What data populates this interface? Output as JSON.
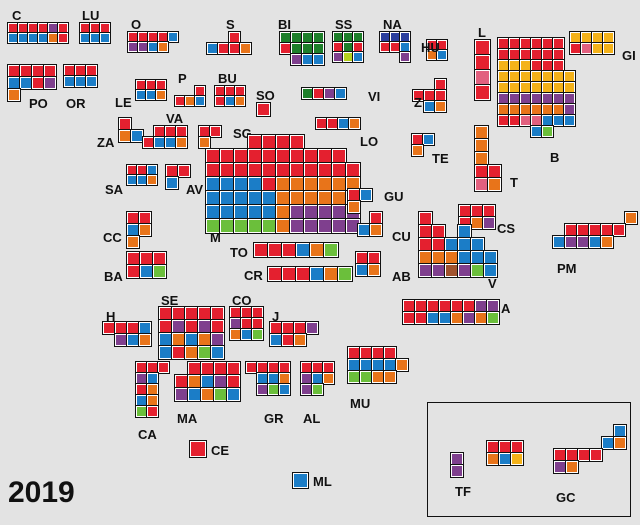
{
  "title": "2019",
  "colors": {
    "red": "#e4202f",
    "blue": "#1b7dc7",
    "orange": "#e8741a",
    "purple": "#7f3f8e",
    "green": "#6bbf3b",
    "dkgreen": "#1d7f2a",
    "yellow": "#f4b219",
    "pink": "#e2607f",
    "lime": "#b6d11e",
    "brown": "#a0522d",
    "navy": "#2a3e9e"
  },
  "provinces": [
    {
      "id": "C",
      "label": "C",
      "cols": 6,
      "rows": [
        [
          "red",
          "red",
          "red",
          "red",
          "purple",
          "red"
        ],
        [
          "blue",
          "blue",
          "blue",
          "blue",
          "orange",
          "red"
        ]
      ]
    },
    {
      "id": "LU",
      "label": "LU",
      "cols": 3,
      "rows": [
        [
          "red",
          "red",
          "red"
        ],
        [
          "blue",
          "blue",
          "blue"
        ]
      ]
    },
    {
      "id": "O",
      "label": "O",
      "cols": 5,
      "rows": [
        [
          "red",
          "red",
          "red",
          "red",
          "blue"
        ],
        [
          "purple",
          "purple",
          "blue",
          "orange",
          ""
        ]
      ]
    },
    {
      "id": "S",
      "label": "S",
      "cols": 4,
      "rows": [
        [
          "",
          "",
          "red",
          ""
        ],
        [
          "blue",
          "red",
          "red",
          "orange"
        ]
      ]
    },
    {
      "id": "BI",
      "label": "BI",
      "cols": 4,
      "rows": [
        [
          "dkgreen",
          "dkgreen",
          "dkgreen",
          "dkgreen"
        ],
        [
          "red",
          "dkgreen",
          "dkgreen",
          "dkgreen"
        ],
        [
          "",
          "purple",
          "blue",
          "blue"
        ]
      ]
    },
    {
      "id": "SS",
      "label": "SS",
      "cols": 3,
      "rows": [
        [
          "dkgreen",
          "dkgreen",
          "dkgreen"
        ],
        [
          "red",
          "dkgreen",
          "red"
        ],
        [
          "purple",
          "lime",
          "blue"
        ]
      ]
    },
    {
      "id": "NA",
      "label": "NA",
      "cols": 3,
      "rows": [
        [
          "navy",
          "navy",
          "navy"
        ],
        [
          "red",
          "red",
          "blue"
        ],
        [
          "",
          "",
          "purple"
        ]
      ]
    },
    {
      "id": "L",
      "label": "L",
      "cols": 1,
      "rows": [
        [
          "red"
        ],
        [
          "red"
        ],
        [
          "pink"
        ],
        [
          "red"
        ]
      ]
    },
    {
      "id": "GI",
      "label": "GI",
      "cols": 4,
      "rows": [
        [
          "yellow",
          "yellow",
          "yellow",
          "yellow"
        ],
        [
          "red",
          "pink",
          "yellow",
          "yellow"
        ]
      ]
    },
    {
      "id": "PO",
      "label": "PO",
      "cols": 4,
      "rows": [
        [
          "red",
          "red",
          "red",
          "red"
        ],
        [
          "blue",
          "blue",
          "red",
          "purple"
        ],
        [
          "orange",
          "",
          "",
          ""
        ]
      ]
    },
    {
      "id": "OR",
      "label": "OR",
      "cols": 3,
      "rows": [
        [
          "red",
          "red",
          "red"
        ],
        [
          "blue",
          "blue",
          "blue"
        ]
      ]
    },
    {
      "id": "HU",
      "label": "HU",
      "cols": 2,
      "rows": [
        [
          "red",
          "red"
        ],
        [
          "orange",
          "blue"
        ]
      ]
    },
    {
      "id": "B",
      "label": "B",
      "cols": 7,
      "rows": [
        [
          "red",
          "red",
          "red",
          "red",
          "red",
          "red",
          ""
        ],
        [
          "red",
          "red",
          "red",
          "red",
          "red",
          "red",
          ""
        ],
        [
          "yellow",
          "yellow",
          "yellow",
          "red",
          "red",
          "red",
          ""
        ],
        [
          "yellow",
          "yellow",
          "yellow",
          "yellow",
          "yellow",
          "yellow",
          "yellow"
        ],
        [
          "yellow",
          "yellow",
          "yellow",
          "yellow",
          "yellow",
          "yellow",
          "yellow"
        ],
        [
          "purple",
          "purple",
          "purple",
          "purple",
          "purple",
          "purple",
          "purple"
        ],
        [
          "orange",
          "orange",
          "orange",
          "orange",
          "orange",
          "orange",
          "purple"
        ],
        [
          "red",
          "red",
          "pink",
          "pink",
          "blue",
          "blue",
          "blue"
        ],
        [
          "",
          "",
          "",
          "blue",
          "green",
          "",
          ""
        ]
      ]
    },
    {
      "id": "P",
      "label": "P",
      "cols": 3,
      "rows": [
        [
          "",
          "",
          "red"
        ],
        [
          "red",
          "orange",
          "blue"
        ]
      ]
    },
    {
      "id": "BU",
      "label": "BU",
      "cols": 3,
      "rows": [
        [
          "red",
          "red",
          "red"
        ],
        [
          "red",
          "blue",
          "orange"
        ]
      ]
    },
    {
      "id": "LE",
      "label": "LE",
      "cols": 3,
      "rows": [
        [
          "red",
          "red",
          "red"
        ],
        [
          "blue",
          "blue",
          "orange"
        ]
      ]
    },
    {
      "id": "SO",
      "label": "SO",
      "cols": 1,
      "rows": [
        [
          "red"
        ]
      ]
    },
    {
      "id": "VI",
      "label": "VI",
      "cols": 4,
      "rows": [
        [
          "dkgreen",
          "red",
          "purple",
          "blue"
        ]
      ]
    },
    {
      "id": "Z",
      "label": "Z",
      "cols": 3,
      "rows": [
        [
          "",
          "",
          "red"
        ],
        [
          "red",
          "red",
          "red"
        ],
        [
          "",
          "blue",
          "orange"
        ]
      ]
    },
    {
      "id": "ZA",
      "label": "ZA",
      "cols": 2,
      "rows": [
        [
          "red",
          ""
        ],
        [
          "orange",
          "blue"
        ]
      ]
    },
    {
      "id": "VA",
      "label": "VA",
      "cols": 4,
      "rows": [
        [
          "",
          "red",
          "red",
          "red"
        ],
        [
          "red",
          "blue",
          "blue",
          "orange"
        ]
      ]
    },
    {
      "id": "SG",
      "label": "SG",
      "cols": 2,
      "rows": [
        [
          "red",
          "red"
        ],
        [
          "orange",
          ""
        ]
      ]
    },
    {
      "id": "LO",
      "label": "LO",
      "cols": 4,
      "rows": [
        [
          "red",
          "red",
          "blue",
          "orange"
        ]
      ]
    },
    {
      "id": "TE",
      "label": "TE",
      "cols": 2,
      "rows": [
        [
          "red",
          "blue"
        ],
        [
          "orange",
          ""
        ]
      ]
    },
    {
      "id": "T",
      "label": "T",
      "cols": 2,
      "rows": [
        [
          "orange",
          ""
        ],
        [
          "orange",
          ""
        ],
        [
          "orange",
          ""
        ],
        [
          "red",
          "red"
        ],
        [
          "pink",
          "orange"
        ]
      ]
    },
    {
      "id": "M",
      "label": "M",
      "cols": 11,
      "rows": [
        [
          "",
          "",
          "",
          "red",
          "red",
          "red",
          "red",
          "",
          "",
          "",
          ""
        ],
        [
          "red",
          "red",
          "red",
          "red",
          "red",
          "red",
          "red",
          "red",
          "red",
          "red",
          ""
        ],
        [
          "red",
          "red",
          "red",
          "red",
          "red",
          "red",
          "red",
          "red",
          "red",
          "red",
          "red"
        ],
        [
          "blue",
          "blue",
          "blue",
          "blue",
          "red",
          "orange",
          "orange",
          "orange",
          "orange",
          "orange",
          "orange"
        ],
        [
          "blue",
          "blue",
          "blue",
          "blue",
          "blue",
          "orange",
          "orange",
          "orange",
          "orange",
          "orange",
          "orange"
        ],
        [
          "blue",
          "blue",
          "blue",
          "blue",
          "blue",
          "orange",
          "purple",
          "purple",
          "purple",
          "purple",
          "purple"
        ],
        [
          "green",
          "green",
          "green",
          "green",
          "green",
          "orange",
          "purple",
          "purple",
          "purple",
          "purple",
          "purple"
        ]
      ]
    },
    {
      "id": "SA",
      "label": "SA",
      "cols": 3,
      "rows": [
        [
          "red",
          "red",
          "blue"
        ],
        [
          "blue",
          "blue",
          "orange"
        ]
      ]
    },
    {
      "id": "AV",
      "label": "AV",
      "cols": 2,
      "rows": [
        [
          "red",
          "red"
        ],
        [
          "blue",
          ""
        ]
      ]
    },
    {
      "id": "GU",
      "label": "GU",
      "cols": 2,
      "rows": [
        [
          "red",
          "blue"
        ],
        [
          "orange",
          ""
        ]
      ]
    },
    {
      "id": "CC",
      "label": "CC",
      "cols": 2,
      "rows": [
        [
          "red",
          "red"
        ],
        [
          "blue",
          "orange"
        ],
        [
          "orange",
          ""
        ]
      ]
    },
    {
      "id": "CU",
      "label": "CU",
      "cols": 2,
      "rows": [
        [
          "",
          "red"
        ],
        [
          "blue",
          "orange"
        ]
      ]
    },
    {
      "id": "CS",
      "label": "CS",
      "cols": 3,
      "rows": [
        [
          "red",
          "red",
          "red"
        ],
        [
          "red",
          "orange",
          "purple"
        ]
      ]
    },
    {
      "id": "TO",
      "label": "TO",
      "cols": 6,
      "rows": [
        [
          "red",
          "red",
          "red",
          "blue",
          "orange",
          "green"
        ]
      ]
    },
    {
      "id": "PM",
      "label": "PM",
      "cols": 7,
      "rows": [
        [
          "",
          "",
          "",
          "",
          "",
          "",
          "orange"
        ],
        [
          "",
          "red",
          "red",
          "red",
          "red",
          "red",
          ""
        ],
        [
          "blue",
          "purple",
          "purple",
          "blue",
          "orange",
          "",
          ""
        ]
      ]
    },
    {
      "id": "BA",
      "label": "BA",
      "cols": 3,
      "rows": [
        [
          "red",
          "red",
          "red"
        ],
        [
          "red",
          "blue",
          "green"
        ]
      ]
    },
    {
      "id": "CR",
      "label": "CR",
      "cols": 6,
      "rows": [
        [
          "red",
          "red",
          "red",
          "blue",
          "orange",
          "green"
        ]
      ]
    },
    {
      "id": "AB",
      "label": "AB",
      "cols": 2,
      "rows": [
        [
          "red",
          "red"
        ],
        [
          "blue",
          "orange"
        ]
      ]
    },
    {
      "id": "V",
      "label": "V",
      "cols": 6,
      "rows": [
        [
          "red",
          "",
          "",
          "",
          "",
          ""
        ],
        [
          "red",
          "red",
          "",
          "blue",
          "",
          ""
        ],
        [
          "red",
          "red",
          "blue",
          "blue",
          "blue",
          ""
        ],
        [
          "orange",
          "orange",
          "orange",
          "blue",
          "blue",
          "blue"
        ],
        [
          "purple",
          "purple",
          "brown",
          "purple",
          "green",
          "blue"
        ]
      ]
    },
    {
      "id": "A",
      "label": "A",
      "cols": 8,
      "rows": [
        [
          "red",
          "red",
          "red",
          "red",
          "red",
          "red",
          "purple",
          "purple"
        ],
        [
          "red",
          "red",
          "blue",
          "blue",
          "orange",
          "purple",
          "orange",
          "green"
        ]
      ]
    },
    {
      "id": "H",
      "label": "H",
      "cols": 4,
      "rows": [
        [
          "red",
          "red",
          "red",
          "blue"
        ],
        [
          "",
          "purple",
          "blue",
          "orange"
        ]
      ]
    },
    {
      "id": "SE",
      "label": "SE",
      "cols": 5,
      "rows": [
        [
          "red",
          "red",
          "red",
          "red",
          "red"
        ],
        [
          "red",
          "purple",
          "red",
          "purple",
          "red"
        ],
        [
          "blue",
          "orange",
          "blue",
          "orange",
          "purple"
        ],
        [
          "blue",
          "red",
          "orange",
          "green",
          "blue"
        ]
      ]
    },
    {
      "id": "CO",
      "label": "CO",
      "cols": 3,
      "rows": [
        [
          "red",
          "red",
          "red"
        ],
        [
          "purple",
          "red",
          "red"
        ],
        [
          "orange",
          "blue",
          "green"
        ]
      ]
    },
    {
      "id": "J",
      "label": "J",
      "cols": 4,
      "rows": [
        [
          "red",
          "red",
          "red",
          "purple"
        ],
        [
          "blue",
          "red",
          "orange",
          ""
        ]
      ]
    },
    {
      "id": "MU",
      "label": "MU",
      "cols": 5,
      "rows": [
        [
          "red",
          "red",
          "red",
          "red",
          ""
        ],
        [
          "blue",
          "blue",
          "blue",
          "blue",
          "orange"
        ],
        [
          "green",
          "green",
          "orange",
          "orange",
          ""
        ]
      ]
    },
    {
      "id": "CA",
      "label": "CA",
      "cols": 3,
      "rows": [
        [
          "red",
          "red",
          "red"
        ],
        [
          "purple",
          "blue",
          ""
        ],
        [
          "red",
          "orange",
          ""
        ],
        [
          "blue",
          "orange",
          ""
        ],
        [
          "green",
          "red",
          ""
        ]
      ]
    },
    {
      "id": "MA",
      "label": "MA",
      "cols": 5,
      "rows": [
        [
          "",
          "red",
          "red",
          "red",
          "red"
        ],
        [
          "red",
          "orange",
          "blue",
          "purple",
          "red"
        ],
        [
          "purple",
          "blue",
          "orange",
          "green",
          "blue"
        ]
      ]
    },
    {
      "id": "GR",
      "label": "GR",
      "cols": 4,
      "rows": [
        [
          "red",
          "red",
          "red",
          "red"
        ],
        [
          "",
          "blue",
          "blue",
          "orange"
        ],
        [
          "",
          "purple",
          "green",
          "blue"
        ]
      ]
    },
    {
      "id": "AL",
      "label": "AL",
      "cols": 3,
      "rows": [
        [
          "red",
          "red",
          "red"
        ],
        [
          "purple",
          "blue",
          "orange"
        ],
        [
          "purple",
          "green",
          ""
        ]
      ]
    },
    {
      "id": "CE",
      "label": "CE",
      "cols": 1,
      "rows": [
        [
          "red"
        ]
      ]
    },
    {
      "id": "ML",
      "label": "ML",
      "cols": 1,
      "rows": [
        [
          "blue"
        ]
      ]
    },
    {
      "id": "TF",
      "label": "TF",
      "cols": 6,
      "rows": [
        [
          "",
          "",
          "",
          "red",
          "red",
          "red"
        ],
        [
          "purple",
          "",
          "",
          "orange",
          "blue",
          "yellow"
        ],
        [
          "purple",
          "",
          "",
          "",
          "",
          ""
        ]
      ]
    },
    {
      "id": "GC",
      "label": "GC",
      "cols": 6,
      "rows": [
        [
          "",
          "",
          "",
          "",
          "",
          "blue"
        ],
        [
          "",
          "",
          "",
          "",
          "blue",
          "orange"
        ],
        [
          "red",
          "red",
          "red",
          "red",
          "",
          ""
        ],
        [
          "purple",
          "orange",
          "",
          "",
          "",
          ""
        ]
      ]
    }
  ]
}
